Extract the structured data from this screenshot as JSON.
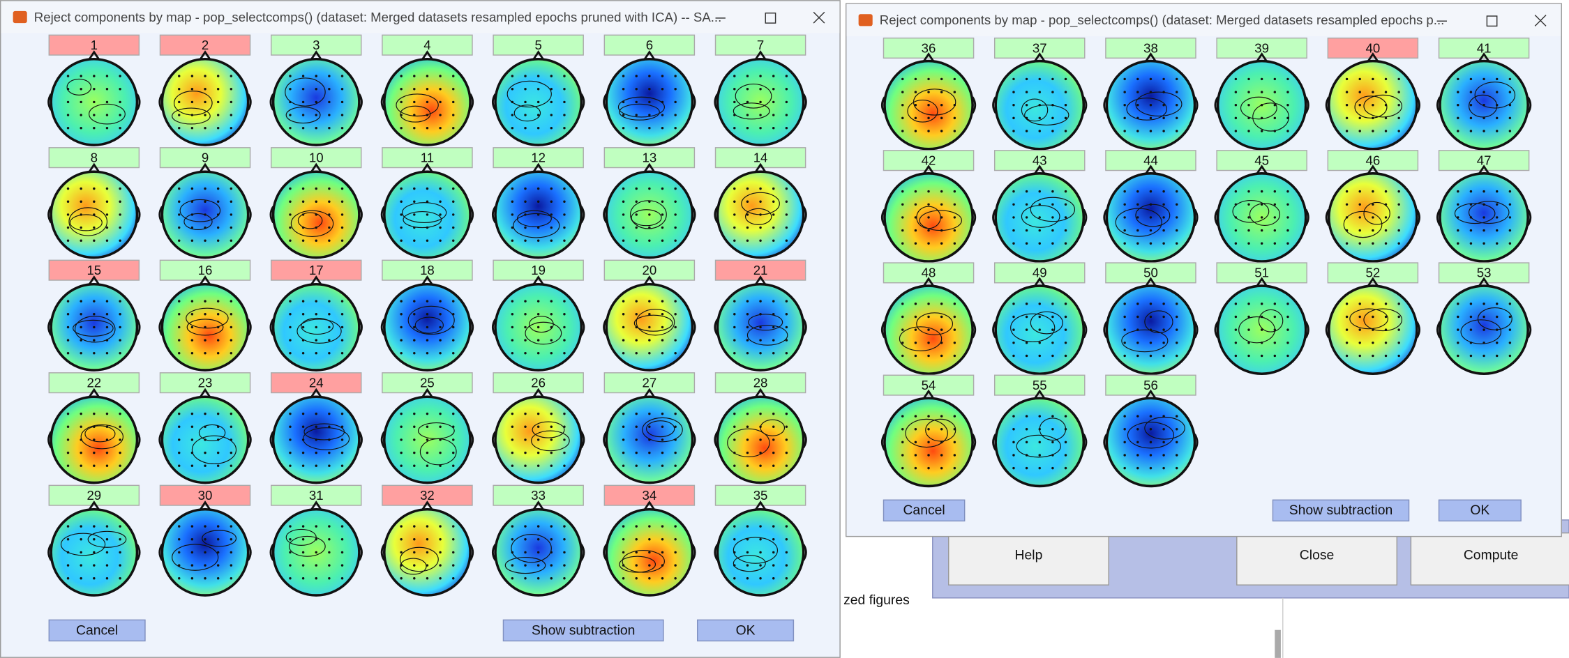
{
  "windows": [
    {
      "title": "Reject components by map - pop_selectcomps() (dataset: Merged datasets resampled epochs pruned with ICA) -- SA...",
      "components": [
        {
          "label": "1",
          "rejected": true
        },
        {
          "label": "2",
          "rejected": true
        },
        {
          "label": "3",
          "rejected": false
        },
        {
          "label": "4",
          "rejected": false
        },
        {
          "label": "5",
          "rejected": false
        },
        {
          "label": "6",
          "rejected": false
        },
        {
          "label": "7",
          "rejected": false
        },
        {
          "label": "8",
          "rejected": false
        },
        {
          "label": "9",
          "rejected": false
        },
        {
          "label": "10",
          "rejected": false
        },
        {
          "label": "11",
          "rejected": false
        },
        {
          "label": "12",
          "rejected": false
        },
        {
          "label": "13",
          "rejected": false
        },
        {
          "label": "14",
          "rejected": false
        },
        {
          "label": "15",
          "rejected": true
        },
        {
          "label": "16",
          "rejected": false
        },
        {
          "label": "17",
          "rejected": true
        },
        {
          "label": "18",
          "rejected": false
        },
        {
          "label": "19",
          "rejected": false
        },
        {
          "label": "20",
          "rejected": false
        },
        {
          "label": "21",
          "rejected": true
        },
        {
          "label": "22",
          "rejected": false
        },
        {
          "label": "23",
          "rejected": false
        },
        {
          "label": "24",
          "rejected": true
        },
        {
          "label": "25",
          "rejected": false
        },
        {
          "label": "26",
          "rejected": false
        },
        {
          "label": "27",
          "rejected": false
        },
        {
          "label": "28",
          "rejected": false
        },
        {
          "label": "29",
          "rejected": false
        },
        {
          "label": "30",
          "rejected": true
        },
        {
          "label": "31",
          "rejected": false
        },
        {
          "label": "32",
          "rejected": true
        },
        {
          "label": "33",
          "rejected": false
        },
        {
          "label": "34",
          "rejected": true
        },
        {
          "label": "35",
          "rejected": false
        }
      ],
      "buttons": {
        "cancel": "Cancel",
        "show_subtraction": "Show subtraction",
        "ok": "OK"
      }
    },
    {
      "title": "Reject components by map - pop_selectcomps() (dataset: Merged datasets resampled epochs p...",
      "components": [
        {
          "label": "36",
          "rejected": false
        },
        {
          "label": "37",
          "rejected": false
        },
        {
          "label": "38",
          "rejected": false
        },
        {
          "label": "39",
          "rejected": false
        },
        {
          "label": "40",
          "rejected": true
        },
        {
          "label": "41",
          "rejected": false
        },
        {
          "label": "42",
          "rejected": false
        },
        {
          "label": "43",
          "rejected": false
        },
        {
          "label": "44",
          "rejected": false
        },
        {
          "label": "45",
          "rejected": false
        },
        {
          "label": "46",
          "rejected": false
        },
        {
          "label": "47",
          "rejected": false
        },
        {
          "label": "48",
          "rejected": false
        },
        {
          "label": "49",
          "rejected": false
        },
        {
          "label": "50",
          "rejected": false
        },
        {
          "label": "51",
          "rejected": false
        },
        {
          "label": "52",
          "rejected": false
        },
        {
          "label": "53",
          "rejected": false
        },
        {
          "label": "54",
          "rejected": false
        },
        {
          "label": "55",
          "rejected": false
        },
        {
          "label": "56",
          "rejected": false
        }
      ],
      "buttons": {
        "cancel": "Cancel",
        "show_subtraction": "Show subtraction",
        "ok": "OK"
      }
    }
  ],
  "background": {
    "buttons": [
      "Help",
      "Close",
      "Compute"
    ],
    "text": "zed figures"
  }
}
